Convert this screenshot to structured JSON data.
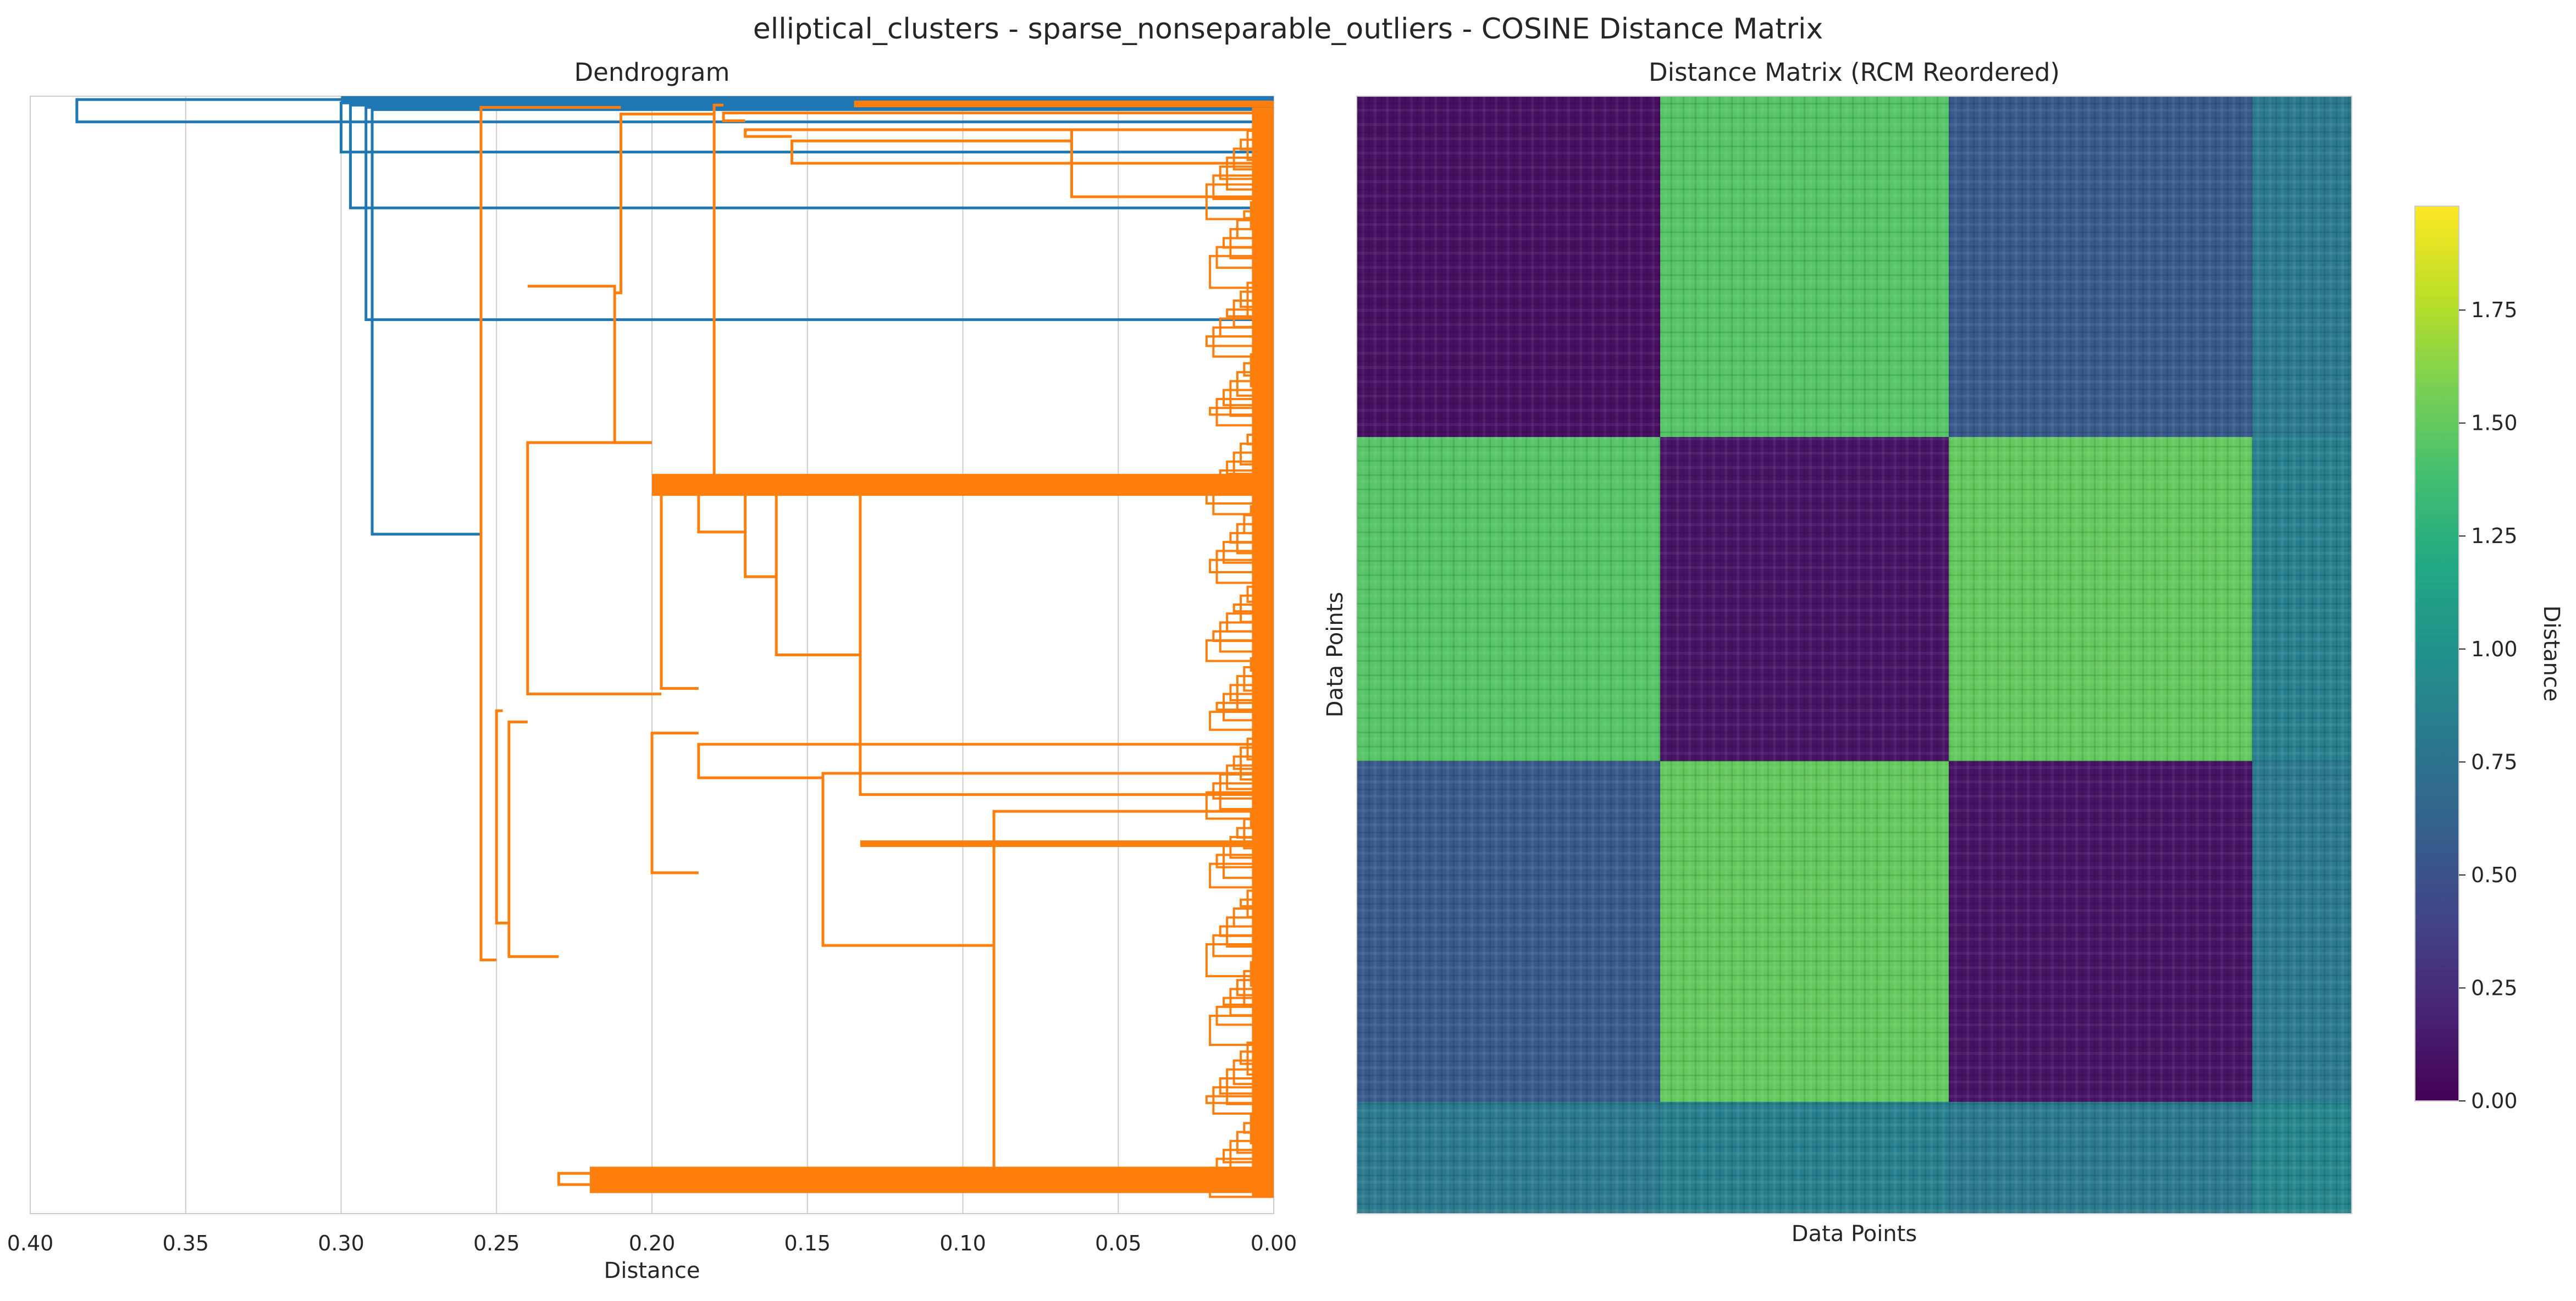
{
  "figure": {
    "title": "elliptical_clusters - sparse_nonseparable_outliers - COSINE Distance Matrix"
  },
  "chart_data": [
    {
      "type": "dendrogram",
      "title": "Dendrogram",
      "xlabel": "Distance",
      "ylabel": "",
      "xlim": [
        0.4,
        0.0
      ],
      "xticks": [
        0.4,
        0.35,
        0.3,
        0.25,
        0.2,
        0.15,
        0.1,
        0.05,
        0.0
      ],
      "xtick_labels": [
        "0.40",
        "0.35",
        "0.30",
        "0.25",
        "0.20",
        "0.15",
        "0.10",
        "0.05",
        "0.00"
      ],
      "grid": "vertical",
      "colors": {
        "outlier_links": "#1f77b4",
        "main_cluster": "#ff7f0e"
      },
      "merge_heights": {
        "root": 0.385,
        "outlier_merges": [
          0.3,
          0.297,
          0.292,
          0.29
        ],
        "main_cluster_root": 0.255,
        "major_merges": [
          0.25,
          0.24,
          0.22,
          0.21,
          0.2,
          0.185,
          0.17,
          0.165,
          0.145,
          0.135,
          0.09,
          0.065
        ]
      }
    },
    {
      "type": "heatmap",
      "title": "Distance Matrix (RCM Reordered)",
      "xlabel": "Data Points",
      "ylabel": "Data Points",
      "colormap": "viridis",
      "colorbar": {
        "label": "Distance",
        "range": [
          0.0,
          1.98
        ],
        "ticks": [
          0.0,
          0.25,
          0.5,
          0.75,
          1.0,
          1.25,
          1.5,
          1.75
        ],
        "tick_labels": [
          "0.00",
          "0.25",
          "0.50",
          "0.75",
          "1.00",
          "1.25",
          "1.50",
          "1.75"
        ]
      },
      "blocks": [
        "cluster 1",
        "cluster 2",
        "cluster 3",
        "outliers"
      ],
      "block_fractions": [
        0.305,
        0.29,
        0.305,
        0.1
      ],
      "block_mean_distance": [
        [
          0.08,
          1.45,
          0.55,
          0.8
        ],
        [
          1.45,
          0.1,
          1.5,
          0.85
        ],
        [
          0.55,
          1.5,
          0.1,
          0.8
        ],
        [
          0.8,
          0.85,
          0.8,
          0.9
        ]
      ]
    }
  ]
}
